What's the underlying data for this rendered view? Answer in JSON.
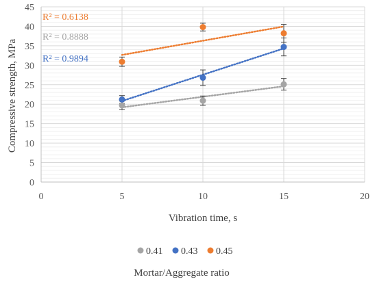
{
  "chart_data": {
    "type": "scatter",
    "title": "",
    "xlabel": "Vibration time, s",
    "ylabel": "Compressive strength, MPa",
    "xlim": [
      0,
      20
    ],
    "ylim": [
      0,
      45
    ],
    "x_ticks": [
      "0",
      "5",
      "10",
      "15",
      "20"
    ],
    "y_ticks": [
      "0",
      "5",
      "10",
      "15",
      "20",
      "25",
      "30",
      "35",
      "40",
      "45"
    ],
    "grid": true,
    "legend_position": "bottom",
    "legend_title": "Mortar/Aggregate ratio",
    "series": [
      {
        "name": "0.41",
        "color": "#a5a5a5",
        "x": [
          5,
          10,
          15
        ],
        "y": [
          19.7,
          20.9,
          25.1
        ],
        "err": [
          1.1,
          1.2,
          1.5
        ],
        "trend_r2": "R² = 0.8888",
        "trendline": true
      },
      {
        "name": "0.43",
        "color": "#4472c4",
        "x": [
          5,
          10,
          15
        ],
        "y": [
          21.2,
          26.8,
          34.7
        ],
        "err": [
          1.0,
          2.0,
          2.3
        ],
        "trend_r2": "R² = 0.9894",
        "trendline": true
      },
      {
        "name": "0.45",
        "color": "#ed7d31",
        "x": [
          5,
          10,
          15
        ],
        "y": [
          30.9,
          39.8,
          38.2
        ],
        "err": [
          1.2,
          1.0,
          2.3
        ],
        "trend_r2": "R² = 0.6138",
        "trendline": true
      }
    ]
  }
}
